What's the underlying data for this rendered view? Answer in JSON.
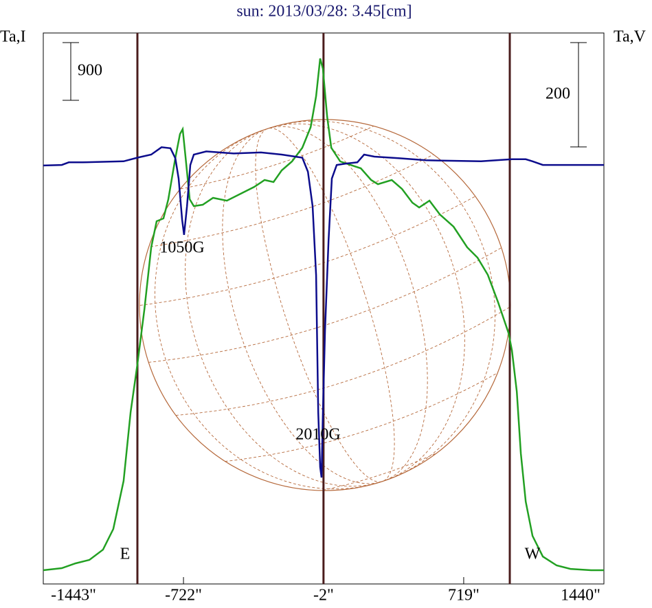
{
  "chart_data": {
    "type": "line",
    "title": "sun: 2013/03/28: 3.45[cm]",
    "ylabel": "Ta,I",
    "y2label": "Ta,V",
    "xlim": [
      -1443,
      1440
    ],
    "xticks": [
      {
        "value": -1443,
        "label": "-1443\""
      },
      {
        "value": -722,
        "label": "-722\""
      },
      {
        "value": -2,
        "label": "-2\""
      },
      {
        "value": 719,
        "label": "719\""
      },
      {
        "value": 1440,
        "label": "1440\""
      }
    ],
    "ylim": [
      -214,
      8379
    ],
    "y2lim": [
      -803,
      253
    ],
    "markers": [
      -959,
      -2,
      956
    ],
    "marker_color": "#4a1c1c",
    "scale_bars": [
      {
        "label": 900,
        "axis": "y"
      },
      {
        "label": 200,
        "axis": "y2"
      }
    ],
    "annotations": [
      "E",
      "W",
      "1050G",
      "2010G"
    ],
    "series": [
      {
        "name": "Ta,I",
        "color": "#22a022",
        "axis": "y",
        "x": [
          -1443,
          -1348,
          -1277,
          -1206,
          -1136,
          -1083,
          -1030,
          -994,
          -959,
          -923,
          -888,
          -860,
          -825,
          -800,
          -764,
          -740,
          -726,
          -711,
          -690,
          -669,
          -623,
          -570,
          -499,
          -429,
          -358,
          -305,
          -259,
          -217,
          -164,
          -111,
          -68,
          -40,
          -19,
          -5,
          17,
          38,
          84,
          137,
          190,
          243,
          278,
          349,
          402,
          455,
          490,
          543,
          596,
          667,
          737,
          790,
          843,
          896,
          950,
          967,
          992,
          1013,
          1038,
          1073,
          1126,
          1197,
          1268,
          1374,
          1440
        ],
        "values": [
          0,
          32,
          107,
          161,
          321,
          643,
          1393,
          2464,
          3214,
          4071,
          5036,
          5443,
          5486,
          5786,
          6429,
          6804,
          6879,
          6429,
          5786,
          5679,
          5700,
          5807,
          5764,
          5871,
          5979,
          6086,
          6054,
          6236,
          6375,
          6589,
          6911,
          7393,
          7982,
          7821,
          7071,
          6589,
          6375,
          6321,
          6268,
          6086,
          6021,
          6086,
          5946,
          5732,
          5657,
          5764,
          5550,
          5357,
          5036,
          4875,
          4607,
          4179,
          3696,
          3429,
          2786,
          1821,
          1071,
          536,
          214,
          75,
          21,
          0,
          0
        ]
      },
      {
        "name": "Ta,V",
        "color": "#0c0c8c",
        "axis": "y2",
        "x": [
          -1443,
          -1348,
          -1312,
          -1242,
          -1030,
          -959,
          -888,
          -835,
          -789,
          -764,
          -747,
          -729,
          -719,
          -704,
          -687,
          -669,
          -605,
          -464,
          -323,
          -217,
          -111,
          -82,
          -58,
          -40,
          -29,
          -19,
          -12,
          -5,
          6,
          24,
          41,
          66,
          119,
          172,
          207,
          260,
          384,
          525,
          808,
          967,
          1038,
          1073,
          1126,
          1440
        ],
        "values": [
          -1,
          0,
          5,
          5,
          7,
          14,
          20,
          34,
          32,
          13,
          -26,
          -105,
          -134,
          -79,
          0,
          20,
          26,
          22,
          24,
          20,
          14,
          -13,
          -79,
          -211,
          -474,
          -579,
          -599,
          -474,
          -316,
          -145,
          -26,
          0,
          3,
          5,
          20,
          16,
          13,
          9,
          7,
          11,
          11,
          7,
          0,
          0
        ]
      }
    ]
  }
}
